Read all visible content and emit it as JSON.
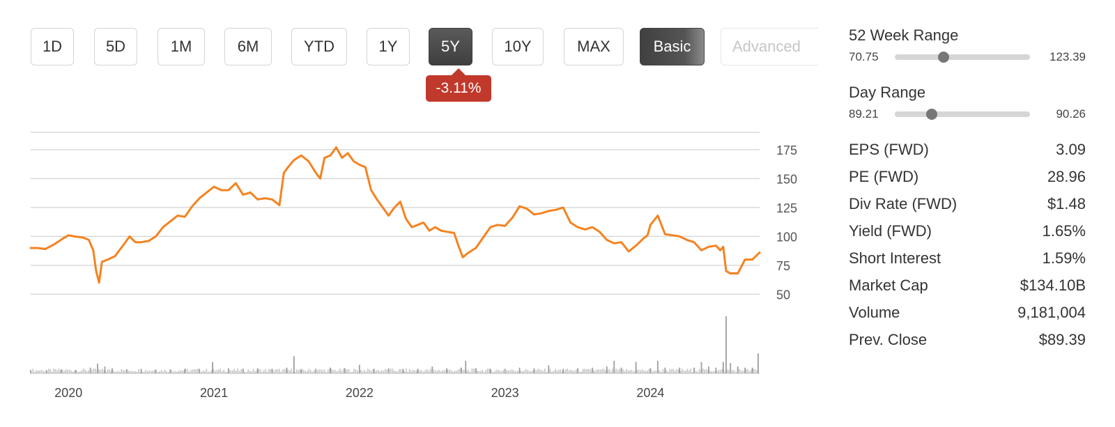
{
  "range_buttons": [
    {
      "label": "1D",
      "active": false
    },
    {
      "label": "5D",
      "active": false
    },
    {
      "label": "1M",
      "active": false
    },
    {
      "label": "6M",
      "active": false
    },
    {
      "label": "YTD",
      "active": false
    },
    {
      "label": "1Y",
      "active": false
    },
    {
      "label": "5Y",
      "active": true
    },
    {
      "label": "10Y",
      "active": false
    },
    {
      "label": "MAX",
      "active": false
    }
  ],
  "mode_buttons": {
    "basic": "Basic",
    "advanced": "Advanced"
  },
  "period_change": "-3.11%",
  "colors": {
    "price_line": "#f5821f",
    "badge": "#c0392b",
    "volume": "#9e9e9e",
    "grid": "#d9d9d9",
    "active_button": "#4a4a4a"
  },
  "week52_range": {
    "title": "52 Week Range",
    "low": "70.75",
    "high": "123.39",
    "position": 0.35
  },
  "day_range": {
    "title": "Day Range",
    "low": "89.21",
    "high": "90.26",
    "position": 0.25
  },
  "stats": [
    {
      "label": "EPS (FWD)",
      "value": "3.09"
    },
    {
      "label": "PE (FWD)",
      "value": "28.96"
    },
    {
      "label": "Div Rate (FWD)",
      "value": "$1.48"
    },
    {
      "label": "Yield (FWD)",
      "value": "1.65%"
    },
    {
      "label": "Short Interest",
      "value": "1.59%"
    },
    {
      "label": "Market Cap",
      "value": "$134.10B"
    },
    {
      "label": "Volume",
      "value": "9,181,004"
    },
    {
      "label": "Prev. Close",
      "value": "$89.39"
    }
  ],
  "chart_data": {
    "type": "line",
    "x_tick_labels": [
      "2020",
      "2021",
      "2022",
      "2023",
      "2024"
    ],
    "x_ticks": [
      2020.0,
      2021.0,
      2022.0,
      2023.0,
      2024.0
    ],
    "xlim": [
      2019.74,
      2024.75
    ],
    "y_ticks": [
      50,
      75,
      100,
      125,
      150,
      175
    ],
    "ylim": [
      43,
      190
    ],
    "grid": true,
    "series": [
      {
        "x": [
          2019.74,
          2019.79,
          2019.84,
          2019.9,
          2019.96,
          2020.0,
          2020.04,
          2020.1,
          2020.14,
          2020.17,
          2020.19,
          2020.21,
          2020.23,
          2020.27,
          2020.32,
          2020.38,
          2020.42,
          2020.46,
          2020.5,
          2020.55,
          2020.6,
          2020.65,
          2020.7,
          2020.75,
          2020.8,
          2020.85,
          2020.9,
          2020.95,
          2021.0,
          2021.05,
          2021.1,
          2021.15,
          2021.2,
          2021.25,
          2021.3,
          2021.35,
          2021.4,
          2021.45,
          2021.48,
          2021.51,
          2021.55,
          2021.6,
          2021.65,
          2021.7,
          2021.73,
          2021.76,
          2021.8,
          2021.84,
          2021.88,
          2021.92,
          2021.96,
          2022.0,
          2022.04,
          2022.08,
          2022.12,
          2022.16,
          2022.2,
          2022.24,
          2022.28,
          2022.32,
          2022.36,
          2022.4,
          2022.44,
          2022.48,
          2022.52,
          2022.56,
          2022.6,
          2022.65,
          2022.68,
          2022.71,
          2022.75,
          2022.8,
          2022.85,
          2022.9,
          2022.95,
          2023.0,
          2023.05,
          2023.1,
          2023.15,
          2023.2,
          2023.25,
          2023.3,
          2023.35,
          2023.4,
          2023.45,
          2023.5,
          2023.55,
          2023.6,
          2023.65,
          2023.7,
          2023.75,
          2023.8,
          2023.85,
          2023.9,
          2023.95,
          2023.98,
          2024.0,
          2024.05,
          2024.1,
          2024.15,
          2024.2,
          2024.25,
          2024.3,
          2024.35,
          2024.4,
          2024.45,
          2024.48,
          2024.5,
          2024.52,
          2024.55,
          2024.6,
          2024.65,
          2024.7,
          2024.75
        ],
        "y": [
          90,
          90,
          89,
          93,
          98,
          101,
          100,
          99,
          97,
          88,
          70,
          60,
          78,
          80,
          83,
          93,
          100,
          95,
          95,
          96,
          100,
          108,
          113,
          118,
          117,
          126,
          133,
          138,
          143,
          140,
          140,
          146,
          136,
          138,
          132,
          133,
          132,
          127,
          155,
          160,
          166,
          170,
          165,
          155,
          150,
          168,
          170,
          177,
          168,
          172,
          165,
          162,
          160,
          140,
          132,
          125,
          118,
          125,
          130,
          115,
          108,
          110,
          112,
          105,
          108,
          105,
          104,
          103,
          92,
          82,
          86,
          90,
          99,
          108,
          110,
          109,
          116,
          126,
          124,
          119,
          120,
          122,
          123,
          125,
          112,
          108,
          106,
          108,
          104,
          97,
          94,
          95,
          87,
          92,
          98,
          101,
          110,
          118,
          102,
          101,
          100,
          97,
          95,
          88,
          91,
          92,
          88,
          91,
          70,
          68,
          68,
          80,
          80,
          86
        ]
      }
    ],
    "volume": {
      "note": "relative daily volume, max = 1",
      "x": [
        2019.74,
        2019.85,
        2019.95,
        2020.05,
        2020.15,
        2020.2,
        2020.25,
        2020.3,
        2020.4,
        2020.5,
        2020.6,
        2020.7,
        2020.8,
        2020.9,
        2020.99,
        2021.1,
        2021.2,
        2021.3,
        2021.4,
        2021.5,
        2021.55,
        2021.6,
        2021.7,
        2021.8,
        2021.9,
        2022.0,
        2022.1,
        2022.2,
        2022.3,
        2022.4,
        2022.5,
        2022.6,
        2022.7,
        2022.73,
        2022.8,
        2022.9,
        2023.0,
        2023.1,
        2023.2,
        2023.3,
        2023.4,
        2023.5,
        2023.6,
        2023.7,
        2023.75,
        2023.8,
        2023.9,
        2024.0,
        2024.05,
        2024.1,
        2024.2,
        2024.3,
        2024.35,
        2024.4,
        2024.45,
        2024.5,
        2024.52,
        2024.55,
        2024.6,
        2024.65,
        2024.7,
        2024.74
      ],
      "values": [
        0.06,
        0.05,
        0.07,
        0.06,
        0.1,
        0.17,
        0.12,
        0.09,
        0.07,
        0.08,
        0.07,
        0.07,
        0.08,
        0.08,
        0.2,
        0.09,
        0.08,
        0.09,
        0.08,
        0.1,
        0.3,
        0.06,
        0.08,
        0.1,
        0.09,
        0.15,
        0.08,
        0.09,
        0.08,
        0.08,
        0.12,
        0.09,
        0.1,
        0.22,
        0.09,
        0.08,
        0.08,
        0.1,
        0.09,
        0.14,
        0.08,
        0.09,
        0.1,
        0.12,
        0.22,
        0.1,
        0.2,
        0.09,
        0.22,
        0.1,
        0.1,
        0.1,
        0.2,
        0.12,
        0.1,
        0.2,
        1.0,
        0.18,
        0.12,
        0.1,
        0.1,
        0.35
      ]
    }
  }
}
